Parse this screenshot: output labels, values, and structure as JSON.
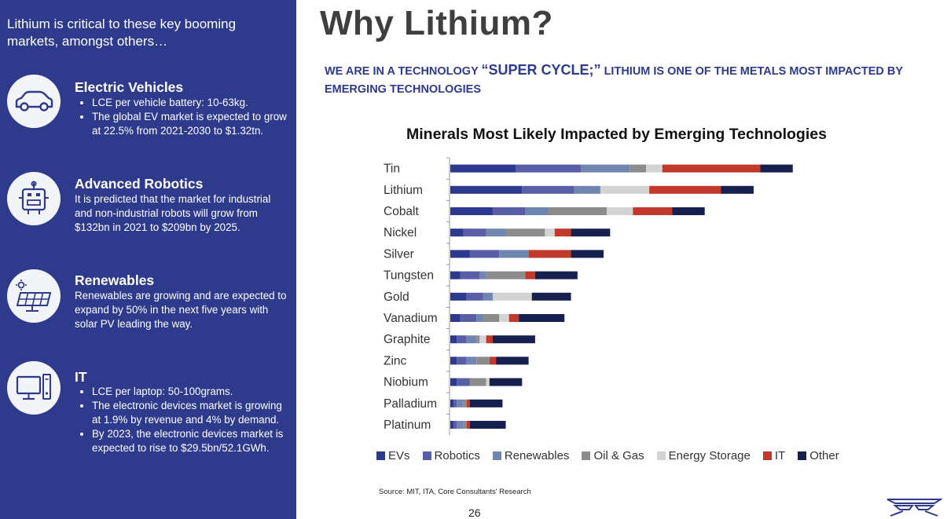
{
  "sidebar": {
    "intro": "Lithium is critical to these key booming\nmarkets, amongst others…",
    "markets": [
      {
        "icon": "car-icon",
        "title": "Electric Vehicles",
        "bullets": [
          "LCE per vehicle battery: 10-63kg.",
          "The global EV market is expected to grow at 22.5% from 2021-2030 to $1.32tn."
        ]
      },
      {
        "icon": "robot-icon",
        "title": "Advanced Robotics",
        "text": "It is predicted that the market for industrial and non-industrial robots will grow from $132bn in 2021 to $209bn by 2025."
      },
      {
        "icon": "solar-panel-icon",
        "title": "Renewables",
        "text": "Renewables are growing and are expected to expand by 50% in the next five years with solar PV leading the way."
      },
      {
        "icon": "computer-icon",
        "title": "IT",
        "bullets": [
          "LCE per laptop: 50-100grams.",
          "The electronic devices market is growing at 1.9% by revenue and 4% by demand.",
          "By 2023, the electronic devices market is expected to rise to $29.5bn/52.1GWh."
        ]
      }
    ]
  },
  "header": {
    "title": "Why Lithium?",
    "subtitle_pre": "WE ARE IN A TECHNOLOGY ",
    "subtitle_emph": "“SUPER CYCLE;”",
    "subtitle_post": " LITHIUM IS ONE OF THE METALS MOST IMPACTED BY EMERGING TECHNOLOGIES"
  },
  "footer": {
    "source": "Source: MIT, ITA, Core Consultants' Research",
    "page": "26"
  },
  "chart_data": {
    "type": "bar",
    "orientation": "horizontal",
    "stacked": true,
    "title": "Minerals Most Likely Impacted by Emerging Technologies",
    "xlabel": "",
    "ylabel": "",
    "x_axis_visible": false,
    "grid": false,
    "legend_position": "bottom",
    "categories": [
      "Tin",
      "Lithium",
      "Cobalt",
      "Nickel",
      "Silver",
      "Tungsten",
      "Gold",
      "Vanadium",
      "Graphite",
      "Zinc",
      "Niobium",
      "Palladium",
      "Platinum"
    ],
    "series": [
      {
        "name": "EVs",
        "color": "#2b3a8f",
        "values": [
          100,
          110,
          65,
          20,
          30,
          15,
          25,
          15,
          10,
          10,
          10,
          5,
          5
        ]
      },
      {
        "name": "Robotics",
        "color": "#5a5ea6",
        "values": [
          100,
          80,
          50,
          35,
          45,
          30,
          25,
          25,
          15,
          15,
          20,
          5,
          5
        ]
      },
      {
        "name": "Renewables",
        "color": "#6f86b0",
        "values": [
          75,
          40,
          35,
          30,
          45,
          10,
          15,
          10,
          15,
          15,
          0,
          10,
          10
        ]
      },
      {
        "name": "Oil & Gas",
        "color": "#8c8c8c",
        "values": [
          25,
          0,
          90,
          60,
          0,
          60,
          0,
          25,
          5,
          20,
          25,
          5,
          5
        ]
      },
      {
        "name": "Energy Storage",
        "color": "#d3d3d3",
        "values": [
          25,
          75,
          40,
          15,
          0,
          0,
          60,
          15,
          10,
          0,
          5,
          0,
          0
        ]
      },
      {
        "name": "IT",
        "color": "#c0392b",
        "values": [
          150,
          110,
          60,
          25,
          65,
          15,
          0,
          15,
          10,
          10,
          0,
          5,
          5
        ]
      },
      {
        "name": "Other",
        "color": "#15204f",
        "values": [
          50,
          50,
          50,
          60,
          50,
          65,
          60,
          70,
          65,
          50,
          50,
          50,
          55
        ]
      }
    ]
  },
  "colors": {
    "panel_background": "#2e3a8c",
    "icon_circle": "#f2f4f8",
    "accent": "#2e3a8c"
  }
}
